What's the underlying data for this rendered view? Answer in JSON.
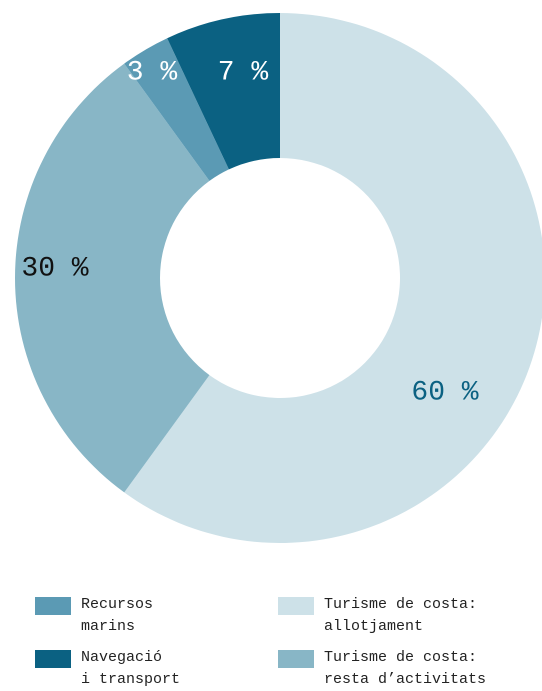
{
  "chart_data": {
    "type": "donut",
    "categories": [
      "Turisme de costa:\nallotjament",
      "Turisme de costa:\nresta d’activitats",
      "Recursos\nmarins",
      "Navegació\ni transport"
    ],
    "values": [
      60,
      30,
      3,
      7
    ],
    "value_labels": [
      "60 %",
      "30 %",
      "3 %",
      "7 %"
    ],
    "colors": [
      "#cde1e8",
      "#88b6c6",
      "#5b9ab4",
      "#0b6182"
    ]
  }
}
